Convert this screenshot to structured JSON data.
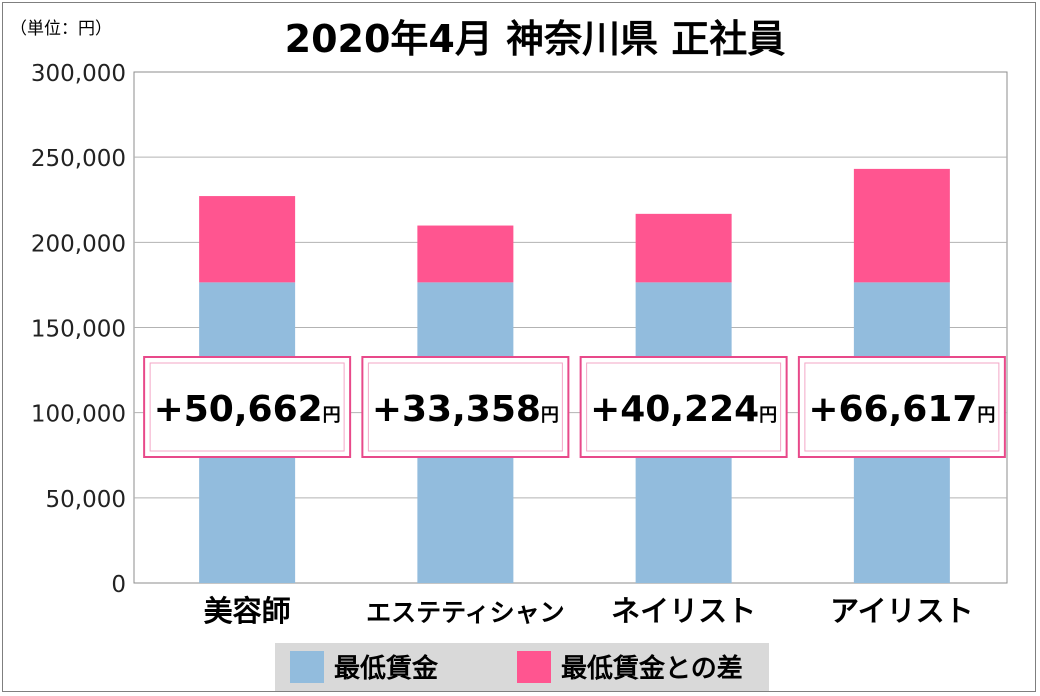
{
  "chart_data": {
    "type": "bar",
    "stacked": true,
    "title": "2020年4月 神奈川県 正社員",
    "unit_label": "（単位：円）",
    "categories": [
      "美容師",
      "エステティシャン",
      "ネイリスト",
      "アイリスト"
    ],
    "series": [
      {
        "name": "最低賃金",
        "color": "#92bcdd",
        "values": [
          176500,
          176500,
          176500,
          176500
        ]
      },
      {
        "name": "最低賃金との差",
        "color": "#ff5590",
        "values": [
          50662,
          33358,
          40224,
          66617
        ]
      }
    ],
    "differences": [
      "+50,662",
      "+33,358",
      "+40,224",
      "+66,617"
    ],
    "difference_unit": "円",
    "ylim": [
      0,
      300000
    ],
    "yticks": [
      0,
      50000,
      100000,
      150000,
      200000,
      250000,
      300000
    ],
    "ytick_labels": [
      "0",
      "50,000",
      "100,000",
      "150,000",
      "200,000",
      "250,000",
      "300,000"
    ],
    "grid": true,
    "legend_position": "bottom"
  }
}
